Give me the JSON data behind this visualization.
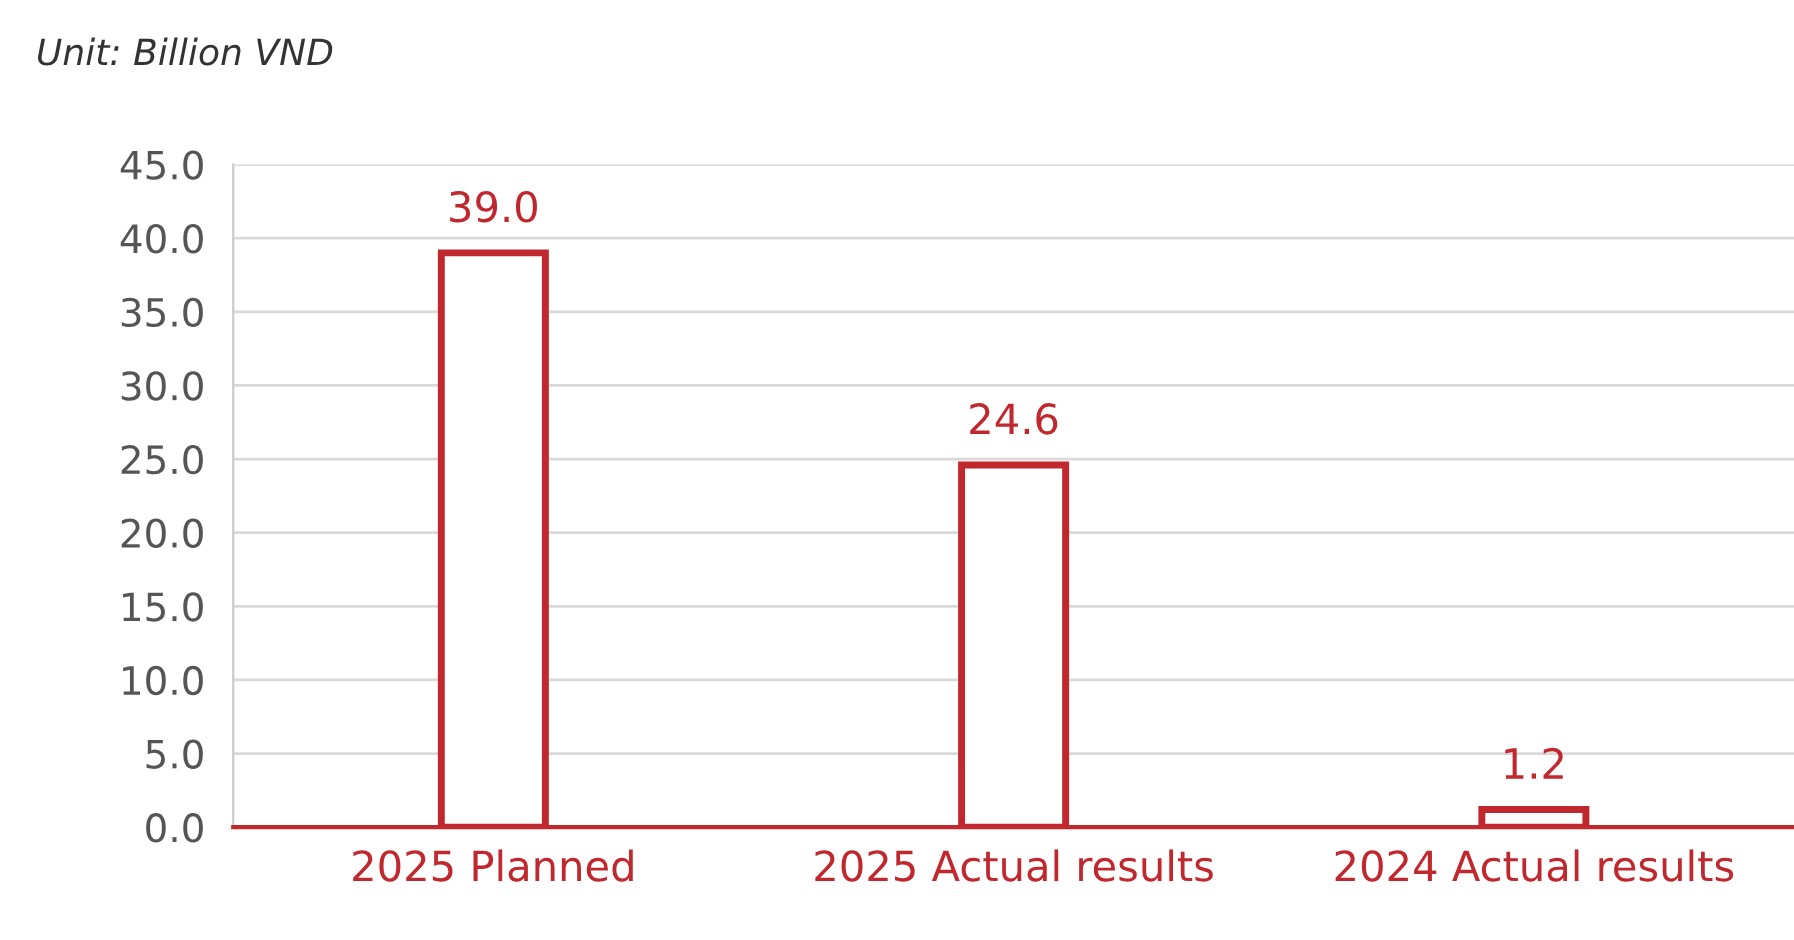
{
  "chart_data": {
    "type": "bar",
    "annotations": [
      "Unit: Billion VND"
    ],
    "categories": [
      "2025 Planned",
      "2025 Actual results",
      "2024 Actual results"
    ],
    "values": [
      39.0,
      24.6,
      1.2
    ],
    "value_labels": [
      "39.0",
      "24.6",
      "1.2"
    ],
    "color": "#c0282e",
    "ylim": [
      0,
      45
    ],
    "yticks": [
      {
        "value": 0,
        "label": "0.0"
      },
      {
        "value": 5,
        "label": "5.0"
      },
      {
        "value": 10,
        "label": "10.0"
      },
      {
        "value": 15,
        "label": "15.0"
      },
      {
        "value": 20,
        "label": "20.0"
      },
      {
        "value": 25,
        "label": "25.0"
      },
      {
        "value": 30,
        "label": "30.0"
      },
      {
        "value": 35,
        "label": "35.0"
      },
      {
        "value": 40,
        "label": "40.0"
      },
      {
        "value": 45,
        "label": "45.0"
      }
    ],
    "grid": "y"
  }
}
